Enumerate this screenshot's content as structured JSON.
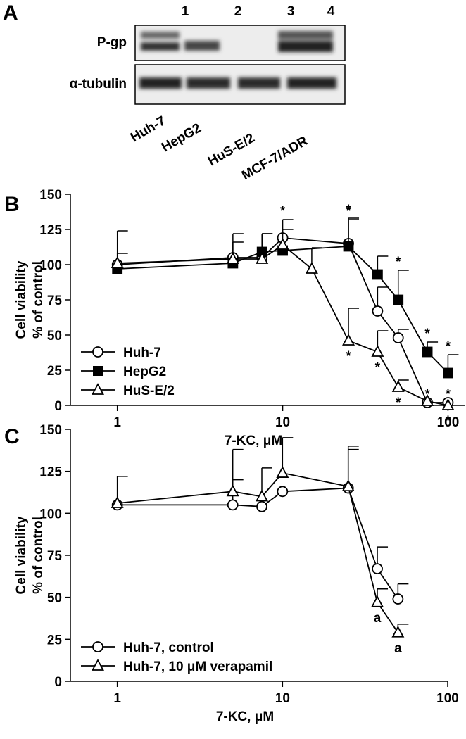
{
  "panel_a": {
    "label": "A",
    "lanes": [
      "1",
      "2",
      "3",
      "4"
    ],
    "rows": [
      "P-gp",
      "α-tubulin"
    ],
    "cell_lines": [
      "Huh-7",
      "HepG2",
      "HuS-E/2",
      "MCF-7/ADR"
    ]
  },
  "chart_data": [
    {
      "type": "line",
      "panel_label": "B",
      "x_label": "7-KC, μM",
      "y_label": [
        "Cell viability",
        "% of control"
      ],
      "x_scale": "log",
      "xlim": [
        0.52,
        126
      ],
      "xticks": [
        1,
        10,
        100
      ],
      "ylim": [
        0,
        150
      ],
      "yticks": [
        0,
        25,
        50,
        75,
        100,
        125,
        150
      ],
      "legend": "lower left",
      "series": [
        {
          "name": "Huh-7",
          "color": "#000000",
          "marker": "circle",
          "annotation_side": "above",
          "x": [
            1,
            5,
            7.5,
            10,
            25,
            37.5,
            50,
            75,
            100
          ],
          "values": [
            100,
            105,
            105,
            119,
            115,
            67,
            48,
            2,
            2
          ],
          "errors": [
            24,
            17,
            17,
            13,
            18,
            17,
            6,
            null,
            null
          ],
          "annotations": [
            null,
            null,
            null,
            "*",
            "*",
            null,
            null,
            "*",
            "*"
          ]
        },
        {
          "name": "HepG2",
          "color": "#000000",
          "marker": "square",
          "annotation_side": "above",
          "x": [
            1,
            5,
            7.5,
            10,
            25,
            37.5,
            50,
            75,
            100
          ],
          "values": [
            97,
            101,
            109,
            110,
            113,
            93,
            75,
            38,
            23
          ],
          "errors": [
            null,
            null,
            13,
            null,
            19,
            13,
            21,
            7,
            13
          ],
          "annotations": [
            null,
            null,
            null,
            null,
            "*",
            null,
            "*",
            "*",
            "*"
          ]
        },
        {
          "name": "HuS-E/2",
          "color": "#000000",
          "marker": "triangle",
          "annotation_side": "below",
          "x": [
            1,
            5,
            7.5,
            10,
            15,
            25,
            37.5,
            50,
            75,
            100
          ],
          "values": [
            101,
            104,
            104,
            114,
            97,
            46,
            38,
            13,
            3,
            0
          ],
          "errors": [
            7,
            12,
            null,
            11,
            15,
            23,
            15,
            5,
            null,
            null
          ],
          "annotations": [
            null,
            null,
            null,
            null,
            null,
            "*",
            "*",
            "*",
            null,
            "*"
          ]
        }
      ]
    },
    {
      "type": "line",
      "panel_label": "C",
      "x_label": "7-KC, μM",
      "y_label": [
        "Cell viability",
        "% of control"
      ],
      "x_scale": "log",
      "xlim": [
        0.52,
        100
      ],
      "xticks": [
        1,
        10,
        100
      ],
      "ylim": [
        0,
        150
      ],
      "yticks": [
        0,
        25,
        50,
        75,
        100,
        125,
        150
      ],
      "legend": "lower left",
      "series": [
        {
          "name": "Huh-7, control",
          "color": "#000000",
          "marker": "circle",
          "annotation_side": "above",
          "x": [
            1,
            5,
            7.5,
            10,
            25,
            37.5,
            50
          ],
          "values": [
            105,
            105,
            104,
            113,
            115,
            67,
            49
          ],
          "errors": [
            17,
            15,
            null,
            null,
            25,
            13,
            9
          ],
          "annotations": [
            null,
            null,
            null,
            null,
            null,
            null,
            null
          ]
        },
        {
          "name": "Huh-7, 10 μM verapamil",
          "color": "#000000",
          "marker": "triangle",
          "annotation_side": "below",
          "x": [
            1,
            5,
            7.5,
            10,
            25,
            37.5,
            50
          ],
          "values": [
            106,
            113,
            110,
            124,
            116,
            47,
            29
          ],
          "errors": [
            null,
            25,
            17,
            21,
            22,
            8,
            5
          ],
          "annotations": [
            null,
            null,
            null,
            null,
            null,
            "a",
            "a"
          ]
        }
      ]
    }
  ]
}
